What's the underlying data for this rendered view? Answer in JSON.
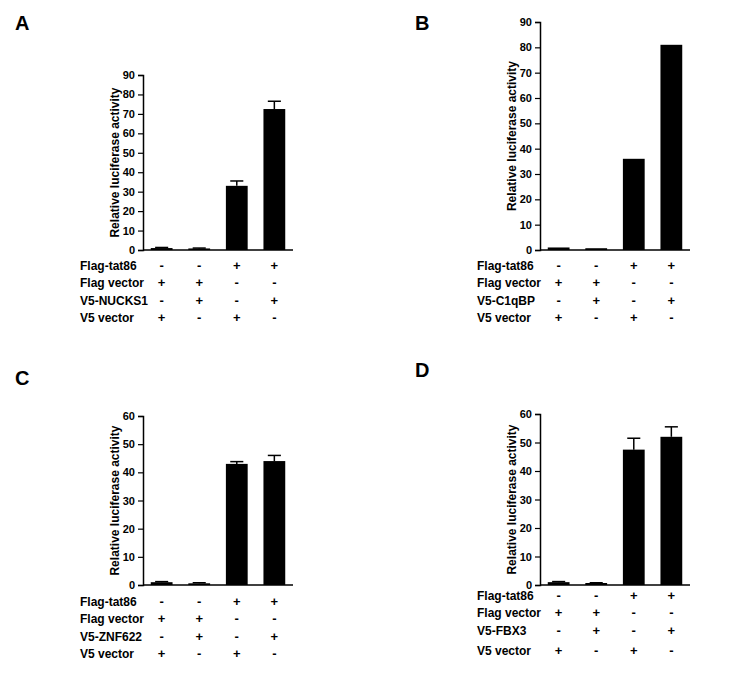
{
  "chart_data": [
    {
      "type": "bar",
      "panel": "A",
      "ylabel": "Relative luciferase activity",
      "categories": [
        null,
        null,
        null,
        null
      ],
      "values": [
        1,
        0.8,
        33,
        72.5
      ],
      "errors": [
        0.3,
        0.2,
        2.5,
        4
      ],
      "color": "#000000",
      "ylim": [
        0,
        90
      ],
      "yticks": [
        0,
        10,
        20,
        30,
        40,
        50,
        60,
        70,
        80,
        90
      ],
      "grid": false,
      "conditions": [
        {
          "label": "Flag-tat86",
          "signs": [
            "-",
            "-",
            "+",
            "+"
          ]
        },
        {
          "label": "Flag vector",
          "signs": [
            "+",
            "+",
            "-",
            "-"
          ]
        },
        {
          "label": "V5-NUCKS1",
          "signs": [
            "-",
            "+",
            "-",
            "+"
          ]
        },
        {
          "label": "V5 vector",
          "signs": [
            "+",
            "-",
            "+",
            "-"
          ]
        }
      ]
    },
    {
      "type": "bar",
      "panel": "B",
      "ylabel": "Relative luciferase activity",
      "categories": [
        null,
        null,
        null,
        null
      ],
      "values": [
        1,
        0.7,
        36,
        81
      ],
      "color": "#000000",
      "ylim": [
        0,
        90
      ],
      "yticks": [
        0,
        10,
        20,
        30,
        40,
        50,
        60,
        70,
        80,
        90
      ],
      "grid": false,
      "conditions": [
        {
          "label": "Flag-tat86",
          "signs": [
            "-",
            "-",
            "+",
            "+"
          ]
        },
        {
          "label": "Flag vector",
          "signs": [
            "+",
            "+",
            "-",
            "-"
          ]
        },
        {
          "label": "V5-C1qBP",
          "signs": [
            "-",
            "+",
            "-",
            "+"
          ]
        },
        {
          "label": "V5 vector",
          "signs": [
            "+",
            "-",
            "+",
            "-"
          ]
        }
      ]
    },
    {
      "type": "bar",
      "panel": "C",
      "ylabel": "Relative luciferase activity",
      "categories": [
        null,
        null,
        null,
        null
      ],
      "values": [
        1,
        0.6,
        43,
        44
      ],
      "errors": [
        0.2,
        0.2,
        0.8,
        2
      ],
      "color": "#000000",
      "ylim": [
        0,
        60
      ],
      "yticks": [
        0,
        10,
        20,
        30,
        40,
        50,
        60
      ],
      "grid": false,
      "conditions": [
        {
          "label": "Flag-tat86",
          "signs": [
            "-",
            "-",
            "+",
            "+"
          ]
        },
        {
          "label": "Flag vector",
          "signs": [
            "+",
            "+",
            "-",
            "-"
          ]
        },
        {
          "label": "V5-ZNF622",
          "signs": [
            "-",
            "+",
            "-",
            "+"
          ]
        },
        {
          "label": "V5 vector",
          "signs": [
            "+",
            "-",
            "+",
            "-"
          ]
        }
      ]
    },
    {
      "type": "bar",
      "panel": "D",
      "ylabel": "Relative luciferase activity",
      "categories": [
        null,
        null,
        null,
        null
      ],
      "values": [
        1,
        0.7,
        47.5,
        52
      ],
      "errors": [
        0.2,
        0.1,
        4,
        3.5
      ],
      "color": "#000000",
      "ylim": [
        0,
        60
      ],
      "yticks": [
        0,
        10,
        20,
        30,
        40,
        50,
        60
      ],
      "grid": false,
      "conditions": [
        {
          "label": "Flag-tat86",
          "signs": [
            "-",
            "-",
            "+",
            "+"
          ]
        },
        {
          "label": "Flag vector",
          "signs": [
            "+",
            "+",
            "-",
            "-"
          ]
        },
        {
          "label": "V5-FBX3",
          "signs": [
            "-",
            "+",
            "-",
            "+"
          ]
        },
        {
          "label": "V5 vector",
          "signs": [
            "+",
            "-",
            "+",
            "-"
          ]
        }
      ]
    }
  ]
}
